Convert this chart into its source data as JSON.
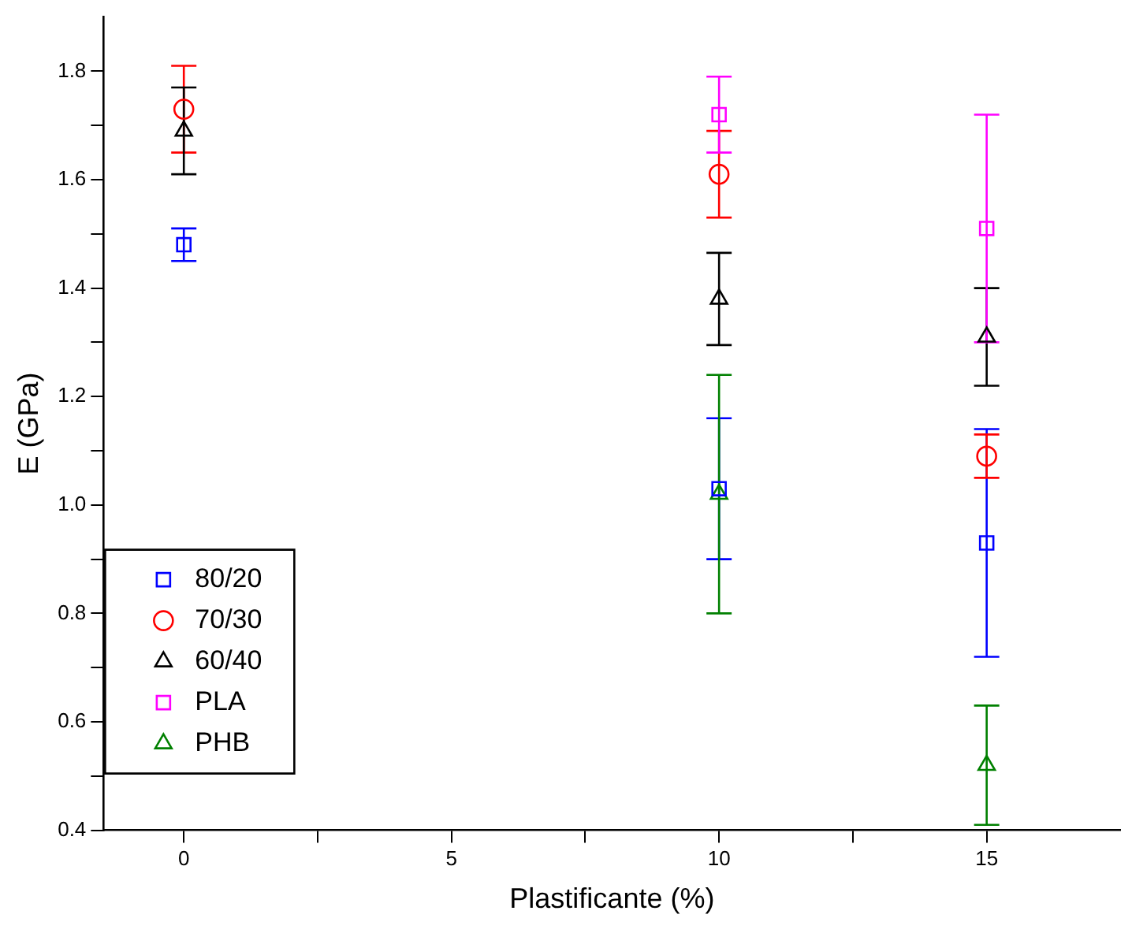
{
  "chart_data": {
    "type": "scatter",
    "xlabel": "Plastificante (%)",
    "ylabel": "E (GPa)",
    "xlim": [
      -1.5,
      17.5
    ],
    "xticks": [
      0,
      {
        "value": 2.5,
        "label": null
      },
      5,
      {
        "value": 7.5,
        "label": null
      },
      10,
      {
        "value": 12.5,
        "label": null
      },
      15
    ],
    "ylim": [
      0.4,
      1.9
    ],
    "yticks": [
      0.4,
      {
        "value": 0.5,
        "label": null
      },
      0.6,
      {
        "value": 0.7,
        "label": null
      },
      0.8,
      {
        "value": 0.9,
        "label": null
      },
      {
        "value": 1.0,
        "label": "1.0"
      },
      {
        "value": 1.1,
        "label": null
      },
      1.2,
      {
        "value": 1.3,
        "label": null
      },
      1.4,
      {
        "value": 1.5,
        "label": null
      },
      1.6,
      {
        "value": 1.7,
        "label": null
      },
      1.8
    ],
    "legend": "bottom left",
    "grid": false,
    "series": [
      {
        "name": "80/20",
        "color": "#0000ff",
        "marker": "square",
        "x": [
          0,
          10,
          15
        ],
        "values": [
          1.48,
          1.03,
          0.93
        ],
        "errors": [
          0.03,
          0.13,
          0.21
        ]
      },
      {
        "name": "70/30",
        "color": "#ff0000",
        "marker": "circle",
        "x": [
          0,
          10,
          15
        ],
        "values": [
          1.73,
          1.61,
          1.09
        ],
        "errors": [
          0.08,
          0.08,
          0.04
        ]
      },
      {
        "name": "60/40",
        "color": "#000000",
        "marker": "triangle",
        "x": [
          0,
          10,
          15
        ],
        "values": [
          1.69,
          1.38,
          1.31
        ],
        "errors": [
          0.08,
          0.085,
          0.09
        ]
      },
      {
        "name": "PLA",
        "color": "#ff00ff",
        "marker": "square",
        "x": [
          10,
          15
        ],
        "values": [
          1.72,
          1.51
        ],
        "errors": [
          0.07,
          0.21
        ]
      },
      {
        "name": "PHB",
        "color": "#008000",
        "marker": "triangle",
        "x": [
          10,
          15
        ],
        "values": [
          1.02,
          0.52
        ],
        "errors": [
          0.22,
          0.11
        ]
      }
    ]
  }
}
